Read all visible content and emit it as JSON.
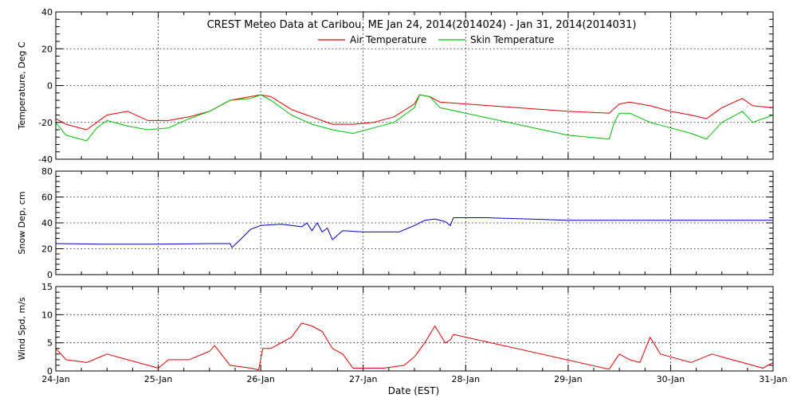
{
  "title": "CREST Meteo Data at Caribou, ME   Jan 24, 2014(2014024) - Jan 31, 2014(2014031)",
  "chart_data": {
    "type": "line",
    "x_start": "24-Jan",
    "x_tick_labels": [
      "24-Jan",
      "25-Jan",
      "26-Jan",
      "27-Jan",
      "28-Jan",
      "29-Jan",
      "30-Jan",
      "31-Jan"
    ],
    "xlabel": "Date (EST)",
    "xlim": [
      0,
      7
    ],
    "x_unit": "days",
    "grid": true,
    "panels": [
      {
        "ylabel": "Temperature, Deg C",
        "ylim": [
          -40,
          40
        ],
        "y_ticks": [
          -40,
          -20,
          0,
          20,
          40
        ],
        "legend_position": "top-center",
        "series": [
          {
            "name": "Air Temperature",
            "color": "#e00000",
            "x": [
              0,
              0.1,
              0.3,
              0.5,
              0.7,
              0.9,
              1.1,
              1.3,
              1.5,
              1.7,
              1.9,
              2.0,
              2.1,
              2.3,
              2.5,
              2.7,
              2.9,
              3.1,
              3.3,
              3.5,
              3.55,
              3.65,
              3.75,
              4.0,
              4.5,
              5.0,
              5.4,
              5.5,
              5.6,
              5.8,
              6.0,
              6.2,
              6.35,
              6.5,
              6.7,
              6.8,
              7.0
            ],
            "y": [
              -18,
              -21,
              -24,
              -16,
              -14,
              -19,
              -19,
              -17,
              -14,
              -8,
              -6,
              -5,
              -6,
              -13,
              -17,
              -21,
              -21,
              -20,
              -17,
              -10,
              -5,
              -6,
              -9,
              -10,
              -12,
              -14,
              -15,
              -10,
              -9,
              -11,
              -14,
              -16,
              -18,
              -12,
              -7,
              -11,
              -12
            ]
          },
          {
            "name": "Skin Temperature",
            "color": "#00c000",
            "x": [
              0,
              0.1,
              0.3,
              0.4,
              0.5,
              0.7,
              0.9,
              1.1,
              1.3,
              1.5,
              1.7,
              1.9,
              2.0,
              2.1,
              2.3,
              2.5,
              2.7,
              2.9,
              3.1,
              3.3,
              3.5,
              3.55,
              3.65,
              3.75,
              4.0,
              4.5,
              5.0,
              5.4,
              5.45,
              5.5,
              5.6,
              5.8,
              6.0,
              6.2,
              6.35,
              6.5,
              6.7,
              6.8,
              7.0
            ],
            "y": [
              -20,
              -27,
              -30,
              -23,
              -19,
              -22,
              -24,
              -23,
              -18,
              -14,
              -8,
              -7,
              -5,
              -8,
              -16,
              -21,
              -24,
              -26,
              -23,
              -20,
              -12,
              -5,
              -6,
              -12,
              -15,
              -21,
              -27,
              -29,
              -20,
              -15,
              -15,
              -20,
              -23,
              -26,
              -29,
              -20,
              -14,
              -20,
              -16
            ]
          }
        ]
      },
      {
        "ylabel": "Snow Dep, cm",
        "ylim": [
          0,
          80
        ],
        "y_ticks": [
          0,
          20,
          40,
          60,
          80
        ],
        "series": [
          {
            "name": "",
            "color": "#0000c0",
            "x": [
              0,
              0.5,
              1.0,
              1.5,
              1.7,
              1.72,
              1.8,
              1.9,
              2.0,
              2.2,
              2.4,
              2.45,
              2.5,
              2.55,
              2.6,
              2.65,
              2.7,
              2.8,
              3.0,
              3.2,
              3.35,
              3.5,
              3.6,
              3.7,
              3.8,
              3.85,
              3.88,
              3.9,
              4.2,
              5.0,
              6.0,
              7.0
            ],
            "y": [
              24,
              23.5,
              23.5,
              24,
              24,
              21,
              27,
              35,
              38,
              39,
              37,
              40,
              34,
              40,
              33,
              36,
              27,
              34,
              33,
              33,
              33,
              38,
              42,
              43,
              41,
              38,
              44,
              44,
              44,
              42,
              42,
              42
            ]
          }
        ]
      },
      {
        "ylabel": "Wind Spd, m/s",
        "ylim": [
          0,
          15
        ],
        "y_ticks": [
          0,
          5,
          10,
          15
        ],
        "series": [
          {
            "name": "",
            "color": "#e00000",
            "x": [
              0,
              0.1,
              0.3,
              0.5,
              0.7,
              0.9,
              1.0,
              1.1,
              1.3,
              1.5,
              1.55,
              1.7,
              1.9,
              1.98,
              2.02,
              2.1,
              2.3,
              2.4,
              2.5,
              2.6,
              2.7,
              2.8,
              2.9,
              3.0,
              3.2,
              3.4,
              3.5,
              3.6,
              3.7,
              3.8,
              3.85,
              3.88,
              5.4,
              5.5,
              5.6,
              5.7,
              5.8,
              5.9,
              6.0,
              6.2,
              6.4,
              6.6,
              6.8,
              6.9,
              7.0
            ],
            "y": [
              4,
              2,
              1.5,
              3,
              2,
              1,
              0.5,
              2,
              2,
              3.5,
              4.5,
              1,
              0.5,
              0.2,
              4,
              4,
              6,
              8.5,
              8,
              7,
              4,
              3,
              0.5,
              0.5,
              0.5,
              1,
              2.5,
              5,
              8,
              5,
              5.5,
              6.5,
              0.3,
              3,
              2,
              1.5,
              6,
              3,
              2.5,
              1.5,
              3,
              2,
              1,
              0.5,
              1.5
            ]
          }
        ]
      }
    ]
  }
}
